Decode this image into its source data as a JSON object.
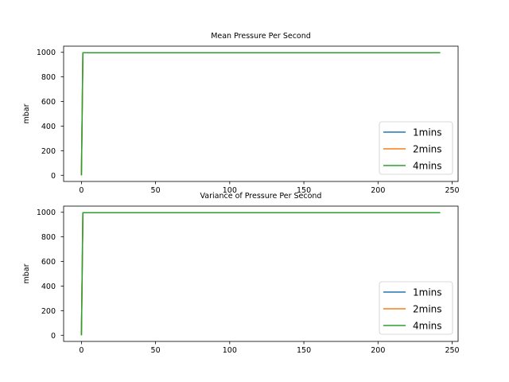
{
  "chart_data": [
    {
      "type": "line",
      "title": "Mean Pressure Per Second",
      "xlabel": "",
      "ylabel": "mbar",
      "xlim": [
        -12,
        254
      ],
      "ylim": [
        -50,
        1050
      ],
      "xticks": [
        0,
        50,
        100,
        150,
        200,
        250
      ],
      "yticks": [
        0,
        200,
        400,
        600,
        800,
        1000
      ],
      "grid": false,
      "legend_position": "lower-right",
      "series": [
        {
          "name": "1mins",
          "color": "#1f77b4",
          "x": [
            0,
            1,
            60
          ],
          "y": [
            0,
            997,
            997
          ]
        },
        {
          "name": "2mins",
          "color": "#ff7f0e",
          "x": [
            0,
            1,
            121
          ],
          "y": [
            0,
            997,
            997
          ]
        },
        {
          "name": "4mins",
          "color": "#2ca02c",
          "x": [
            0,
            1,
            60,
            121,
            242
          ],
          "y": [
            0,
            997,
            997,
            997,
            997
          ]
        }
      ]
    },
    {
      "type": "line",
      "title": "Variance of Pressure Per Second",
      "xlabel": "",
      "ylabel": "mbar",
      "xlim": [
        -12,
        254
      ],
      "ylim": [
        -50,
        1050
      ],
      "xticks": [
        0,
        50,
        100,
        150,
        200,
        250
      ],
      "yticks": [
        0,
        200,
        400,
        600,
        800,
        1000
      ],
      "grid": false,
      "legend_position": "lower-right",
      "series": [
        {
          "name": "1mins",
          "color": "#1f77b4",
          "x": [
            0,
            1,
            60
          ],
          "y": [
            0,
            997,
            997
          ]
        },
        {
          "name": "2mins",
          "color": "#ff7f0e",
          "x": [
            0,
            1,
            121
          ],
          "y": [
            0,
            997,
            997
          ]
        },
        {
          "name": "4mins",
          "color": "#2ca02c",
          "x": [
            0,
            1,
            60,
            121,
            242
          ],
          "y": [
            0,
            997,
            997,
            997,
            997
          ]
        }
      ]
    }
  ]
}
